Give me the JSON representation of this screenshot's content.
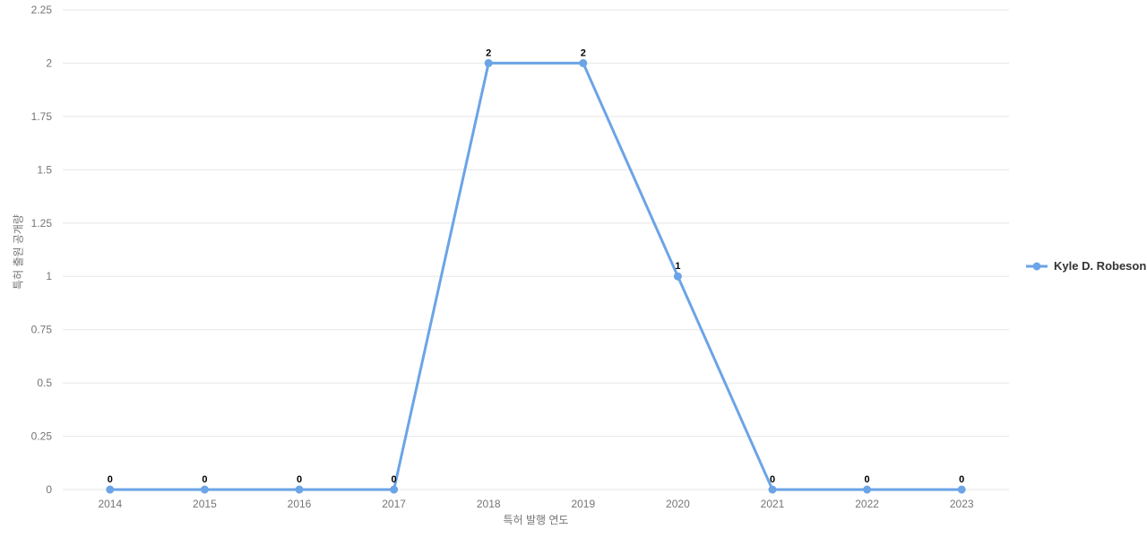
{
  "chart_data": {
    "type": "line",
    "title": "",
    "categories": [
      "2014",
      "2015",
      "2016",
      "2017",
      "2018",
      "2019",
      "2020",
      "2021",
      "2022",
      "2023"
    ],
    "series": [
      {
        "name": "Kyle D. Robeson",
        "values": [
          0,
          0,
          0,
          0,
          2,
          2,
          1,
          0,
          0,
          0
        ],
        "color": "#6ba4e7"
      }
    ],
    "data_labels": [
      "0",
      "0",
      "0",
      "0",
      "2",
      "2",
      "1",
      "0",
      "0",
      "0"
    ],
    "xlabel": "특허 발행 연도",
    "ylabel": "특허 출원 공개량",
    "ylim": [
      0,
      2.25
    ],
    "ytick_step": 0.25,
    "yticks": [
      "0",
      "0.25",
      "0.5",
      "0.75",
      "1",
      "1.25",
      "1.5",
      "1.75",
      "2",
      "2.25"
    ],
    "grid": true,
    "legend_position": "right"
  },
  "legend": {
    "items": [
      {
        "label": "Kyle D. Robeson",
        "color": "#6ba4e7"
      }
    ]
  },
  "colors": {
    "line": "#6ba4e7",
    "grid": "#e6e6e6",
    "tick_label": "#757575",
    "axis_title": "#757575",
    "data_label": "#000000",
    "legend_text": "#333333",
    "background": "#ffffff"
  }
}
